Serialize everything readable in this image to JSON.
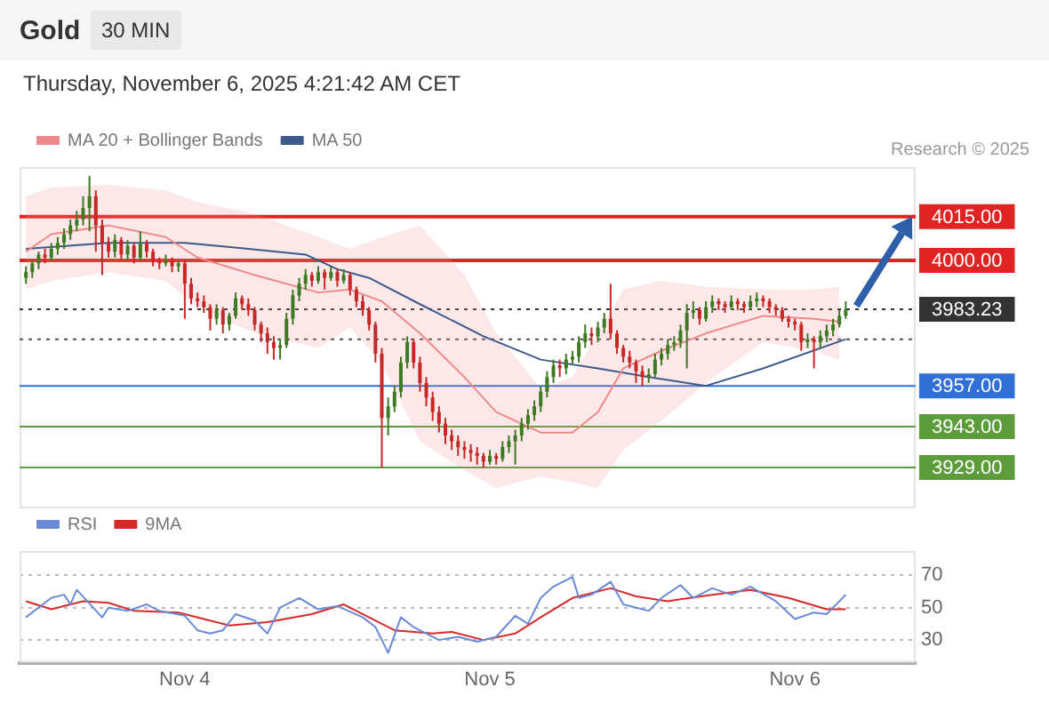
{
  "chart_data": [
    {
      "type": "candlestick",
      "title": "Gold",
      "subtitle": "30 MIN",
      "annotations": [
        "Thursday, November 6, 2025 4:21:42 AM CET",
        "Research © 2025"
      ],
      "xlim": [
        "2025-11-03T11:00",
        "2025-11-06T09:30"
      ],
      "ylim": [
        3915,
        4032
      ],
      "tick_labels": false,
      "grid": false,
      "legend": "top left",
      "series": [
        {
          "name": "MA 20 + Bollinger Bands",
          "type": "line",
          "color": "#f08a8a",
          "x": [
            "2025-11-03T11:30",
            "2025-11-03T13:30",
            "2025-11-03T18:00",
            "2025-11-03T22:30",
            "2025-11-04T01:00",
            "2025-11-04T05:30",
            "2025-11-04T10:30",
            "2025-11-04T13:00",
            "2025-11-04T15:30",
            "2025-11-04T18:30",
            "2025-11-04T22:00",
            "2025-11-05T00:30",
            "2025-11-05T04:00",
            "2025-11-05T06:30",
            "2025-11-05T08:30",
            "2025-11-05T10:30",
            "2025-11-05T13:30",
            "2025-11-05T17:00",
            "2025-11-05T21:30",
            "2025-11-06T01:30",
            "2025-11-06T03:30"
          ],
          "values": [
            4003,
            4009,
            4012,
            4008,
            4001,
            3995,
            3989,
            3990,
            3986,
            3975,
            3960,
            3948,
            3941,
            3941,
            3948,
            3963,
            3969,
            3975,
            3981,
            3980,
            3979
          ],
          "upper": [
            4022,
            4025,
            4026,
            4024,
            4020,
            4016,
            4008,
            4004,
            4008,
            4012,
            3995,
            3975,
            3956,
            3960,
            3975,
            3990,
            3993,
            3991,
            3990,
            3990,
            3991
          ],
          "lower": [
            3990,
            3993,
            3996,
            3993,
            3984,
            3975,
            3970,
            3977,
            3965,
            3938,
            3928,
            3922,
            3926,
            3924,
            3922,
            3935,
            3945,
            3958,
            3972,
            3969,
            3966
          ]
        },
        {
          "name": "MA 50",
          "type": "line",
          "color": "#3d5a8a",
          "x": [
            "2025-11-03T11:30",
            "2025-11-03T18:00",
            "2025-11-04T00:00",
            "2025-11-04T05:00",
            "2025-11-04T09:30",
            "2025-11-04T12:00",
            "2025-11-04T14:30",
            "2025-11-04T18:30",
            "2025-11-04T23:30",
            "2025-11-05T04:00",
            "2025-11-05T08:30",
            "2025-11-05T12:30",
            "2025-11-05T17:00",
            "2025-11-05T21:30",
            "2025-11-06T04:00"
          ],
          "values": [
            4004,
            4006,
            4006,
            4004,
            4002,
            3997,
            3994,
            3985,
            3974,
            3966,
            3963,
            3960,
            3957,
            3963,
            3973
          ]
        },
        {
          "type": "candlestick",
          "x": [
            "2025-11-03T11:30",
            "2025-11-03T12:00",
            "2025-11-03T12:30",
            "2025-11-03T13:00",
            "2025-11-03T13:30",
            "2025-11-03T14:00",
            "2025-11-03T14:30",
            "2025-11-03T15:00",
            "2025-11-03T15:30",
            "2025-11-03T16:00",
            "2025-11-03T16:30",
            "2025-11-03T17:00",
            "2025-11-03T17:30",
            "2025-11-03T18:00",
            "2025-11-03T18:30",
            "2025-11-03T19:00",
            "2025-11-03T19:30",
            "2025-11-03T20:00",
            "2025-11-03T20:30",
            "2025-11-03T21:00",
            "2025-11-03T21:30",
            "2025-11-03T22:00",
            "2025-11-03T22:30",
            "2025-11-03T23:00",
            "2025-11-03T23:30",
            "2025-11-04T00:00",
            "2025-11-04T00:30",
            "2025-11-04T01:00",
            "2025-11-04T01:30",
            "2025-11-04T02:00",
            "2025-11-04T02:30",
            "2025-11-04T03:00",
            "2025-11-04T03:30",
            "2025-11-04T04:00",
            "2025-11-04T04:30",
            "2025-11-04T05:00",
            "2025-11-04T05:30",
            "2025-11-04T06:00",
            "2025-11-04T06:30",
            "2025-11-04T07:00",
            "2025-11-04T07:30",
            "2025-11-04T08:00",
            "2025-11-04T08:30",
            "2025-11-04T09:00",
            "2025-11-04T09:30",
            "2025-11-04T10:00",
            "2025-11-04T10:30",
            "2025-11-04T11:00",
            "2025-11-04T11:30",
            "2025-11-04T12:00",
            "2025-11-04T12:30",
            "2025-11-04T13:00",
            "2025-11-04T13:30",
            "2025-11-04T14:00",
            "2025-11-04T14:30",
            "2025-11-04T15:00",
            "2025-11-04T15:30",
            "2025-11-04T16:00",
            "2025-11-04T16:30",
            "2025-11-04T17:00",
            "2025-11-04T17:30",
            "2025-11-04T18:00",
            "2025-11-04T18:30",
            "2025-11-04T19:00",
            "2025-11-04T19:30",
            "2025-11-04T20:00",
            "2025-11-04T20:30",
            "2025-11-04T21:00",
            "2025-11-04T21:30",
            "2025-11-04T22:00",
            "2025-11-04T22:30",
            "2025-11-04T23:00",
            "2025-11-04T23:30",
            "2025-11-05T00:00",
            "2025-11-05T00:30",
            "2025-11-05T01:00",
            "2025-11-05T01:30",
            "2025-11-05T02:00",
            "2025-11-05T02:30",
            "2025-11-05T03:00",
            "2025-11-05T03:30",
            "2025-11-05T04:00",
            "2025-11-05T04:30",
            "2025-11-05T05:00",
            "2025-11-05T05:30",
            "2025-11-05T06:00",
            "2025-11-05T06:30",
            "2025-11-05T07:00",
            "2025-11-05T07:30",
            "2025-11-05T08:00",
            "2025-11-05T08:30",
            "2025-11-05T09:00",
            "2025-11-05T09:30",
            "2025-11-05T10:00",
            "2025-11-05T10:30",
            "2025-11-05T11:00",
            "2025-11-05T11:30",
            "2025-11-05T12:00",
            "2025-11-05T12:30",
            "2025-11-05T13:00",
            "2025-11-05T13:30",
            "2025-11-05T14:00",
            "2025-11-05T14:30",
            "2025-11-05T15:00",
            "2025-11-05T15:30",
            "2025-11-05T16:00",
            "2025-11-05T16:30",
            "2025-11-05T17:00",
            "2025-11-05T17:30",
            "2025-11-05T18:00",
            "2025-11-05T18:30",
            "2025-11-05T19:00",
            "2025-11-05T19:30",
            "2025-11-05T20:00",
            "2025-11-05T20:30",
            "2025-11-05T21:00",
            "2025-11-05T21:30",
            "2025-11-05T22:00",
            "2025-11-05T22:30",
            "2025-11-05T23:00",
            "2025-11-05T23:30",
            "2025-11-06T00:00",
            "2025-11-06T00:30",
            "2025-11-06T01:00",
            "2025-11-06T01:30",
            "2025-11-06T02:00",
            "2025-11-06T02:30",
            "2025-11-06T03:00",
            "2025-11-06T03:30",
            "2025-11-06T04:00"
          ],
          "ohlc": [
            [
              3994,
              3998,
              3992,
              3996
            ],
            [
              3996,
              4000,
              3994,
              3999
            ],
            [
              3999,
              4003,
              3997,
              4002
            ],
            [
              4002,
              4004,
              3999,
              4001
            ],
            [
              4001,
              4006,
              4000,
              4004
            ],
            [
              4004,
              4008,
              4002,
              4006
            ],
            [
              4006,
              4011,
              4004,
              4009
            ],
            [
              4009,
              4014,
              4007,
              4012
            ],
            [
              4012,
              4017,
              4010,
              4014
            ],
            [
              4014,
              4022,
              4012,
              4018
            ],
            [
              4018,
              4029,
              4010,
              4022
            ],
            [
              4022,
              4024,
              4003,
              4012
            ],
            [
              4012,
              4014,
              3995,
              4006
            ],
            [
              4006,
              4008,
              4001,
              4003
            ],
            [
              4003,
              4009,
              4001,
              4007
            ],
            [
              4007,
              4008,
              4000,
              4002
            ],
            [
              4002,
              4007,
              4000,
              4005
            ],
            [
              4005,
              4006,
              3999,
              4001
            ],
            [
              4001,
              4010,
              4000,
              4006
            ],
            [
              4006,
              4007,
              4001,
              4003
            ],
            [
              4003,
              4004,
              3998,
              4000
            ],
            [
              4000,
              4001,
              3997,
              3999
            ],
            [
              3999,
              4002,
              3998,
              4000
            ],
            [
              4000,
              4001,
              3996,
              3998
            ],
            [
              3998,
              4000,
              3996,
              3999
            ],
            [
              3999,
              4000,
              3980,
              3992
            ],
            [
              3992,
              3994,
              3985,
              3987
            ],
            [
              3987,
              3989,
              3984,
              3986
            ],
            [
              3986,
              3988,
              3982,
              3984
            ],
            [
              3984,
              3985,
              3976,
              3980
            ],
            [
              3980,
              3985,
              3978,
              3983
            ],
            [
              3983,
              3984,
              3975,
              3978
            ],
            [
              3978,
              3982,
              3976,
              3981
            ],
            [
              3981,
              3989,
              3980,
              3987
            ],
            [
              3987,
              3988,
              3983,
              3985
            ],
            [
              3985,
              3987,
              3981,
              3983
            ],
            [
              3983,
              3984,
              3976,
              3978
            ],
            [
              3978,
              3979,
              3972,
              3975
            ],
            [
              3975,
              3977,
              3968,
              3972
            ],
            [
              3972,
              3974,
              3966,
              3970
            ],
            [
              3970,
              3973,
              3966,
              3971
            ],
            [
              3971,
              3982,
              3970,
              3980
            ],
            [
              3980,
              3990,
              3978,
              3988
            ],
            [
              3988,
              3994,
              3986,
              3992
            ],
            [
              3992,
              3997,
              3990,
              3995
            ],
            [
              3995,
              3996,
              3991,
              3993
            ],
            [
              3993,
              3998,
              3992,
              3996
            ],
            [
              3996,
              3997,
              3990,
              3994
            ],
            [
              3994,
              3998,
              3993,
              3996
            ],
            [
              3996,
              3997,
              3991,
              3993
            ],
            [
              3993,
              3997,
              3992,
              3995
            ],
            [
              3995,
              3996,
              3988,
              3990
            ],
            [
              3990,
              3991,
              3984,
              3986
            ],
            [
              3986,
              3988,
              3981,
              3983
            ],
            [
              3983,
              3984,
              3976,
              3978
            ],
            [
              3978,
              3979,
              3965,
              3968
            ],
            [
              3968,
              3970,
              3929,
              3946
            ],
            [
              3946,
              3953,
              3940,
              3950
            ],
            [
              3950,
              3957,
              3948,
              3955
            ],
            [
              3955,
              3967,
              3953,
              3965
            ],
            [
              3965,
              3974,
              3963,
              3972
            ],
            [
              3972,
              3973,
              3963,
              3965
            ],
            [
              3965,
              3967,
              3955,
              3958
            ],
            [
              3958,
              3960,
              3950,
              3953
            ],
            [
              3953,
              3955,
              3945,
              3948
            ],
            [
              3948,
              3950,
              3941,
              3944
            ],
            [
              3944,
              3946,
              3937,
              3940
            ],
            [
              3940,
              3942,
              3935,
              3938
            ],
            [
              3938,
              3940,
              3933,
              3936
            ],
            [
              3936,
              3938,
              3932,
              3935
            ],
            [
              3935,
              3937,
              3931,
              3934
            ],
            [
              3934,
              3936,
              3930,
              3933
            ],
            [
              3933,
              3934,
              3929,
              3931
            ],
            [
              3931,
              3935,
              3930,
              3933
            ],
            [
              3933,
              3934,
              3930,
              3932
            ],
            [
              3932,
              3938,
              3931,
              3936
            ],
            [
              3936,
              3940,
              3934,
              3938
            ],
            [
              3938,
              3942,
              3930,
              3940
            ],
            [
              3940,
              3946,
              3938,
              3944
            ],
            [
              3944,
              3949,
              3942,
              3947
            ],
            [
              3947,
              3952,
              3945,
              3950
            ],
            [
              3950,
              3957,
              3948,
              3955
            ],
            [
              3955,
              3962,
              3953,
              3960
            ],
            [
              3960,
              3966,
              3958,
              3964
            ],
            [
              3964,
              3966,
              3960,
              3963
            ],
            [
              3963,
              3968,
              3961,
              3966
            ],
            [
              3966,
              3969,
              3964,
              3967
            ],
            [
              3967,
              3974,
              3965,
              3972
            ],
            [
              3972,
              3978,
              3970,
              3975
            ],
            [
              3975,
              3977,
              3971,
              3974
            ],
            [
              3974,
              3979,
              3972,
              3977
            ],
            [
              3977,
              3982,
              3975,
              3980
            ],
            [
              3980,
              3992,
              3973,
              3975
            ],
            [
              3975,
              3976,
              3968,
              3970
            ],
            [
              3970,
              3971,
              3965,
              3967
            ],
            [
              3967,
              3969,
              3963,
              3965
            ],
            [
              3965,
              3966,
              3958,
              3962
            ],
            [
              3962,
              3964,
              3957,
              3960
            ],
            [
              3960,
              3963,
              3958,
              3961
            ],
            [
              3961,
              3968,
              3960,
              3966
            ],
            [
              3966,
              3970,
              3964,
              3968
            ],
            [
              3968,
              3973,
              3966,
              3971
            ],
            [
              3971,
              3974,
              3969,
              3972
            ],
            [
              3972,
              3978,
              3970,
              3976
            ],
            [
              3976,
              3985,
              3963,
              3982
            ],
            [
              3982,
              3986,
              3980,
              3983
            ],
            [
              3983,
              3984,
              3978,
              3980
            ],
            [
              3980,
              3986,
              3979,
              3984
            ],
            [
              3984,
              3988,
              3982,
              3986
            ],
            [
              3986,
              3987,
              3983,
              3985
            ],
            [
              3985,
              3986,
              3982,
              3984
            ],
            [
              3984,
              3988,
              3983,
              3986
            ],
            [
              3986,
              3987,
              3983,
              3985
            ],
            [
              3985,
              3986,
              3982,
              3984
            ],
            [
              3984,
              3988,
              3983,
              3986
            ],
            [
              3986,
              3989,
              3984,
              3987
            ],
            [
              3987,
              3988,
              3984,
              3986
            ],
            [
              3986,
              3987,
              3982,
              3984
            ],
            [
              3984,
              3985,
              3981,
              3983
            ],
            [
              3983,
              3984,
              3979,
              3980
            ],
            [
              3980,
              3981,
              3977,
              3979
            ],
            [
              3979,
              3980,
              3976,
              3978
            ],
            [
              3978,
              3979,
              3969,
              3972
            ],
            [
              3972,
              3975,
              3970,
              3973
            ],
            [
              3973,
              3974,
              3963,
              3972
            ],
            [
              3972,
              3976,
              3970,
              3974
            ],
            [
              3974,
              3978,
              3972,
              3976
            ],
            [
              3976,
              3980,
              3974,
              3978
            ],
            [
              3978,
              3983,
              3977,
              3981
            ],
            [
              3981,
              3986,
              3980,
              3983.23
            ]
          ],
          "colors": [
            "#3d7a23",
            "#3d7a23",
            "#3d7a23",
            "#c62828",
            "#3d7a23",
            "#3d7a23",
            "#3d7a23",
            "#3d7a23",
            "#3d7a23",
            "#3d7a23",
            "#3d7a23",
            "#c62828",
            "#c62828",
            "#c62828",
            "#3d7a23",
            "#c62828",
            "#3d7a23",
            "#c62828",
            "#3d7a23",
            "#c62828",
            "#c62828",
            "#c62828",
            "#3d7a23",
            "#c62828",
            "#3d7a23",
            "#c62828",
            "#c62828",
            "#c62828",
            "#c62828",
            "#c62828",
            "#3d7a23",
            "#c62828",
            "#3d7a23",
            "#3d7a23",
            "#c62828",
            "#c62828",
            "#c62828",
            "#c62828",
            "#c62828",
            "#c62828",
            "#3d7a23",
            "#3d7a23",
            "#3d7a23",
            "#3d7a23",
            "#3d7a23",
            "#c62828",
            "#3d7a23",
            "#c62828",
            "#3d7a23",
            "#c62828",
            "#3d7a23",
            "#c62828",
            "#c62828",
            "#c62828",
            "#c62828",
            "#c62828",
            "#c62828",
            "#3d7a23",
            "#3d7a23",
            "#3d7a23",
            "#3d7a23",
            "#c62828",
            "#c62828",
            "#c62828",
            "#c62828",
            "#c62828",
            "#c62828",
            "#c62828",
            "#c62828",
            "#c62828",
            "#c62828",
            "#c62828",
            "#c62828",
            "#3d7a23",
            "#c62828",
            "#3d7a23",
            "#3d7a23",
            "#3d7a23",
            "#3d7a23",
            "#3d7a23",
            "#3d7a23",
            "#3d7a23",
            "#3d7a23",
            "#3d7a23",
            "#c62828",
            "#3d7a23",
            "#3d7a23",
            "#3d7a23",
            "#3d7a23",
            "#c62828",
            "#3d7a23",
            "#3d7a23",
            "#c62828",
            "#c62828",
            "#c62828",
            "#c62828",
            "#c62828",
            "#c62828",
            "#3d7a23",
            "#3d7a23",
            "#3d7a23",
            "#3d7a23",
            "#3d7a23",
            "#3d7a23",
            "#3d7a23",
            "#3d7a23",
            "#c62828",
            "#3d7a23",
            "#3d7a23",
            "#c62828",
            "#c62828",
            "#3d7a23",
            "#c62828",
            "#c62828",
            "#3d7a23",
            "#3d7a23",
            "#c62828",
            "#c62828",
            "#c62828",
            "#c62828",
            "#c62828",
            "#c62828",
            "#c62828",
            "#3d7a23",
            "#c62828",
            "#3d7a23",
            "#3d7a23",
            "#3d7a23",
            "#3d7a23",
            "#3d7a23"
          ]
        }
      ],
      "ref_lines": [
        {
          "axis": "y",
          "value": 4015,
          "label": "4015.00",
          "color": "#e02424"
        },
        {
          "axis": "y",
          "value": 4000,
          "label": "4000.00",
          "color": "#e02424"
        },
        {
          "axis": "y",
          "value": 3983.23,
          "label": "3983.23",
          "color": "#333333",
          "line_style": "dotted"
        },
        {
          "axis": "y",
          "value": 3973,
          "color": "#555555",
          "line_style": "dotted"
        },
        {
          "axis": "y",
          "value": 3957,
          "label": "3957.00",
          "color": "#2f6fd6"
        },
        {
          "axis": "y",
          "value": 3943,
          "label": "3943.00",
          "color": "#5d9c3a"
        },
        {
          "axis": "y",
          "value": 3929,
          "label": "3929.00",
          "color": "#5d9c3a"
        }
      ]
    },
    {
      "type": "line",
      "xlim": [
        "2025-11-03T11:00",
        "2025-11-06T09:30"
      ],
      "xticks": [
        {
          "value": "2025-11-04",
          "label": "Nov 4"
        },
        {
          "value": "2025-11-05",
          "label": "Nov 5"
        },
        {
          "value": "2025-11-06",
          "label": "Nov 6"
        }
      ],
      "ylim": [
        16,
        85
      ],
      "yticks": [
        30,
        50,
        70
      ],
      "grid": "y",
      "legend": "top left",
      "series": [
        {
          "name": "RSI",
          "color": "#6a8ad8",
          "x": [
            "2025-11-03T11:30",
            "2025-11-03T13:30",
            "2025-11-03T14:30",
            "2025-11-03T15:00",
            "2025-11-03T15:30",
            "2025-11-03T17:30",
            "2025-11-03T18:00",
            "2025-11-03T19:30",
            "2025-11-03T21:00",
            "2025-11-03T22:00",
            "2025-11-04T00:00",
            "2025-11-04T01:00",
            "2025-11-04T02:00",
            "2025-11-04T03:00",
            "2025-11-04T04:00",
            "2025-11-04T05:30",
            "2025-11-04T06:30",
            "2025-11-04T07:30",
            "2025-11-04T09:00",
            "2025-11-04T10:30",
            "2025-11-04T12:00",
            "2025-11-04T14:00",
            "2025-11-04T15:00",
            "2025-11-04T16:00",
            "2025-11-04T17:00",
            "2025-11-04T18:00",
            "2025-11-04T20:00",
            "2025-11-04T21:30",
            "2025-11-04T23:00",
            "2025-11-05T00:30",
            "2025-11-05T02:00",
            "2025-11-05T03:00",
            "2025-11-05T04:00",
            "2025-11-05T05:00",
            "2025-11-05T06:30",
            "2025-11-05T07:00",
            "2025-11-05T08:00",
            "2025-11-05T09:30",
            "2025-11-05T10:30",
            "2025-11-05T12:30",
            "2025-11-05T13:30",
            "2025-11-05T15:00",
            "2025-11-05T16:00",
            "2025-11-05T17:30",
            "2025-11-05T19:00",
            "2025-11-05T20:30",
            "2025-11-05T22:30",
            "2025-11-06T00:00",
            "2025-11-06T01:30",
            "2025-11-06T02:30",
            "2025-11-06T04:00"
          ],
          "values": [
            44,
            56,
            58,
            52,
            61,
            44,
            50,
            48,
            52,
            48,
            45,
            36,
            34,
            36,
            46,
            42,
            34,
            50,
            56,
            49,
            51,
            44,
            38,
            22,
            44,
            38,
            30,
            32,
            29,
            32,
            45,
            40,
            56,
            63,
            69,
            56,
            58,
            66,
            52,
            48,
            56,
            64,
            56,
            62,
            58,
            63,
            54,
            43,
            47,
            46,
            58
          ]
        },
        {
          "name": "9MA",
          "color": "#d42a2a",
          "x": [
            "2025-11-03T11:30",
            "2025-11-03T13:30",
            "2025-11-03T16:00",
            "2025-11-03T18:00",
            "2025-11-03T20:00",
            "2025-11-03T23:30",
            "2025-11-04T01:30",
            "2025-11-04T03:30",
            "2025-11-04T06:30",
            "2025-11-04T10:00",
            "2025-11-04T12:30",
            "2025-11-04T14:30",
            "2025-11-04T16:30",
            "2025-11-04T19:30",
            "2025-11-04T21:00",
            "2025-11-04T23:30",
            "2025-11-05T02:00",
            "2025-11-05T04:00",
            "2025-11-05T06:30",
            "2025-11-05T09:30",
            "2025-11-05T11:30",
            "2025-11-05T14:00",
            "2025-11-05T17:30",
            "2025-11-05T20:30",
            "2025-11-05T23:30",
            "2025-11-06T02:30",
            "2025-11-06T04:00"
          ],
          "values": [
            54,
            49,
            54,
            53,
            48,
            47,
            43,
            39,
            41,
            46,
            52,
            44,
            36,
            34,
            35,
            30,
            34,
            44,
            56,
            62,
            57,
            54,
            58,
            61,
            56,
            49,
            49
          ]
        }
      ]
    }
  ]
}
